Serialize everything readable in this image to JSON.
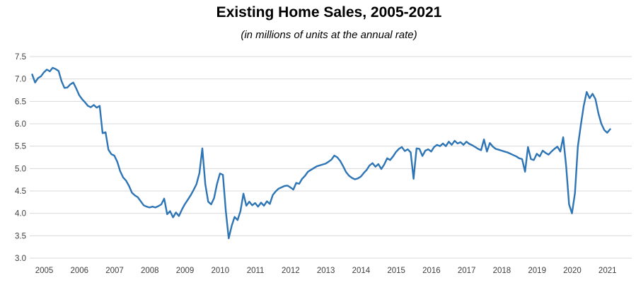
{
  "chart_data": {
    "type": "line",
    "title": "Existing Home Sales, 2005-2021",
    "subtitle": "(in millions of units at the annual rate)",
    "xlabel": "",
    "ylabel": "",
    "ylim": [
      3.0,
      7.5
    ],
    "y_tick_step": 0.5,
    "y_tick_labels": [
      "3.0",
      "3.5",
      "4.0",
      "4.5",
      "5.0",
      "5.5",
      "6.0",
      "6.5",
      "7.0",
      "7.5"
    ],
    "x_tick_labels": [
      "2005",
      "2006",
      "2007",
      "2008",
      "2009",
      "2010",
      "2011",
      "2012",
      "2013",
      "2014",
      "2015",
      "2016",
      "2017",
      "2018",
      "2019",
      "2020",
      "2021"
    ],
    "grid": "horizontal-only",
    "legend_position": "none",
    "line_color": "#2e75b6",
    "grid_color": "#d9d9d9",
    "tick_label_color": "#3f3f3f",
    "background_color": "#ffffff",
    "series": [
      {
        "name": "Existing home sales (millions of units, annual rate)",
        "frequency": "monthly",
        "start": "2005-01",
        "end": "2021-06",
        "values": [
          7.1,
          6.92,
          7.02,
          7.06,
          7.15,
          7.21,
          7.17,
          7.25,
          7.22,
          7.18,
          6.95,
          6.8,
          6.81,
          6.88,
          6.92,
          6.79,
          6.64,
          6.55,
          6.48,
          6.4,
          6.37,
          6.42,
          6.36,
          6.4,
          5.79,
          5.81,
          5.42,
          5.32,
          5.29,
          5.15,
          4.94,
          4.8,
          4.73,
          4.61,
          4.46,
          4.4,
          4.36,
          4.27,
          4.18,
          4.15,
          4.13,
          4.15,
          4.13,
          4.16,
          4.2,
          4.33,
          3.98,
          4.05,
          3.91,
          4.02,
          3.94,
          4.08,
          4.2,
          4.3,
          4.4,
          4.52,
          4.65,
          4.9,
          5.45,
          4.65,
          4.26,
          4.2,
          4.34,
          4.66,
          4.89,
          4.86,
          4.05,
          3.44,
          3.72,
          3.92,
          3.85,
          4.05,
          4.44,
          4.17,
          4.26,
          4.18,
          4.23,
          4.15,
          4.24,
          4.17,
          4.27,
          4.21,
          4.41,
          4.49,
          4.55,
          4.58,
          4.61,
          4.62,
          4.58,
          4.53,
          4.68,
          4.66,
          4.77,
          4.84,
          4.93,
          4.97,
          5.01,
          5.05,
          5.07,
          5.09,
          5.11,
          5.15,
          5.2,
          5.29,
          5.25,
          5.17,
          5.05,
          4.92,
          4.84,
          4.79,
          4.76,
          4.78,
          4.82,
          4.9,
          4.97,
          5.07,
          5.12,
          5.04,
          5.1,
          4.99,
          5.09,
          5.23,
          5.19,
          5.27,
          5.37,
          5.44,
          5.48,
          5.39,
          5.43,
          5.36,
          4.77,
          5.45,
          5.44,
          5.28,
          5.4,
          5.43,
          5.38,
          5.48,
          5.53,
          5.5,
          5.56,
          5.5,
          5.6,
          5.53,
          5.62,
          5.56,
          5.59,
          5.53,
          5.6,
          5.55,
          5.52,
          5.48,
          5.44,
          5.41,
          5.65,
          5.38,
          5.57,
          5.49,
          5.44,
          5.42,
          5.4,
          5.38,
          5.36,
          5.33,
          5.3,
          5.27,
          5.23,
          5.21,
          4.93,
          5.48,
          5.21,
          5.19,
          5.33,
          5.27,
          5.4,
          5.35,
          5.31,
          5.38,
          5.44,
          5.49,
          5.38,
          5.7,
          5.05,
          4.2,
          4.0,
          4.45,
          5.49,
          5.97,
          6.4,
          6.71,
          6.57,
          6.67,
          6.55,
          6.23,
          6.0,
          5.86,
          5.8,
          5.88
        ]
      }
    ]
  }
}
